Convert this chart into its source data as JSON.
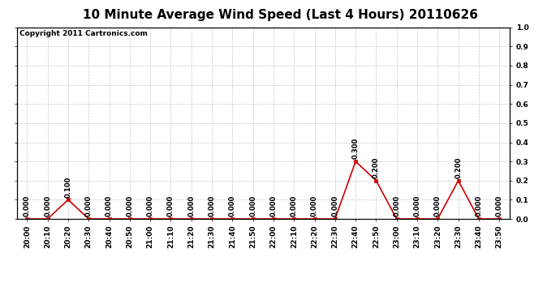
{
  "title": "10 Minute Average Wind Speed (Last 4 Hours) 20110626",
  "copyright_text": "Copyright 2011 Cartronics.com",
  "x_labels": [
    "20:00",
    "20:10",
    "20:20",
    "20:30",
    "20:40",
    "20:50",
    "21:00",
    "21:10",
    "21:20",
    "21:30",
    "21:40",
    "21:50",
    "22:00",
    "22:10",
    "22:20",
    "22:30",
    "22:40",
    "22:50",
    "23:00",
    "23:10",
    "23:20",
    "23:30",
    "23:40",
    "23:50"
  ],
  "y_values": [
    0.0,
    0.0,
    0.1,
    0.0,
    0.0,
    0.0,
    0.0,
    0.0,
    0.0,
    0.0,
    0.0,
    0.0,
    0.0,
    0.0,
    0.0,
    0.0,
    0.3,
    0.2,
    0.0,
    0.0,
    0.0,
    0.2,
    0.0,
    0.0
  ],
  "ylim": [
    0.0,
    1.0
  ],
  "yticks": [
    0.0,
    0.1,
    0.2,
    0.3,
    0.4,
    0.5,
    0.6,
    0.7,
    0.8,
    0.9,
    1.0
  ],
  "line_color": "#cc0000",
  "marker_color": "#cc0000",
  "background_color": "#ffffff",
  "grid_color": "#c8c8c8",
  "title_fontsize": 11,
  "annotation_fontsize": 6,
  "tick_fontsize": 6.5,
  "copyright_fontsize": 6.5
}
